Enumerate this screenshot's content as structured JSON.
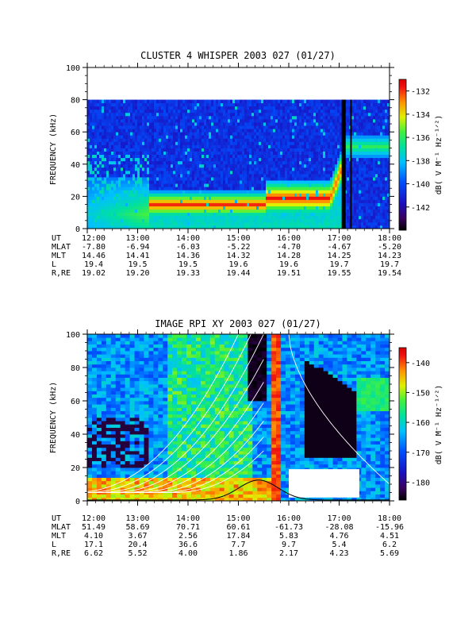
{
  "chart_data": [
    {
      "type": "heatmap",
      "title": "CLUSTER 4 WHISPER 2003 027 (01/27)",
      "ylabel": "FREQUENCY (kHz)",
      "ylim": [
        0,
        100
      ],
      "yticks": [
        "0",
        "20",
        "40",
        "60",
        "80",
        "100"
      ],
      "xlim": [
        "12:00",
        "18:00"
      ],
      "colorbar": {
        "label": "dB( V M⁻¹ Hz⁻¹ᐟ²)",
        "ticks": [
          "-132",
          "-134",
          "-136",
          "-138",
          "-140",
          "-142"
        ],
        "range": [
          -144,
          -131
        ]
      },
      "ephemeris": {
        "labels": [
          "UT",
          "MLAT",
          "MLT",
          "L",
          "R,RE"
        ],
        "ut": [
          "12:00",
          "13:00",
          "14:00",
          "15:00",
          "16:00",
          "17:00",
          "18:00"
        ],
        "mlat": [
          "-7.80",
          "-6.94",
          "-6.03",
          "-5.22",
          "-4.70",
          "-4.67",
          "-5.20"
        ],
        "mlt": [
          "14.46",
          "14.41",
          "14.36",
          "14.32",
          "14.28",
          "14.25",
          "14.23"
        ],
        "l": [
          "19.4",
          "19.5",
          "19.5",
          "19.6",
          "19.6",
          "19.7",
          "19.7"
        ],
        "rre": [
          "19.02",
          "19.20",
          "19.33",
          "19.44",
          "19.51",
          "19.55",
          "19.54"
        ]
      }
    },
    {
      "type": "heatmap",
      "title": "IMAGE RPI XY 2003 027 (01/27)",
      "ylabel": "FREQUENCY (kHz)",
      "ylim": [
        0,
        100
      ],
      "yticks": [
        "0",
        "20",
        "40",
        "60",
        "80",
        "100"
      ],
      "xlim": [
        "12:00",
        "18:00"
      ],
      "colorbar": {
        "label": "dB( V M⁻¹ Hz⁻¹ᐟ²)",
        "ticks": [
          "-140",
          "-150",
          "-160",
          "-170",
          "-180"
        ],
        "range": [
          -186,
          -135
        ]
      },
      "ephemeris": {
        "labels": [
          "UT",
          "MLAT",
          "MLT",
          "L",
          "R,RE"
        ],
        "ut": [
          "12:00",
          "13:00",
          "14:00",
          "15:00",
          "16:00",
          "17:00",
          "18:00"
        ],
        "mlat": [
          "51.49",
          "58.69",
          "70.71",
          "60.61",
          "-61.73",
          "-28.08",
          "-15.96"
        ],
        "mlt": [
          "4.10",
          "3.67",
          "2.56",
          "17.84",
          "5.83",
          "4.76",
          "4.51"
        ],
        "l": [
          "17.1",
          "20.4",
          "36.6",
          "7.7",
          "9.7",
          "5.4",
          "6.2"
        ],
        "rre": [
          "6.62",
          "5.52",
          "4.00",
          "1.86",
          "2.17",
          "4.23",
          "5.69"
        ]
      }
    }
  ]
}
